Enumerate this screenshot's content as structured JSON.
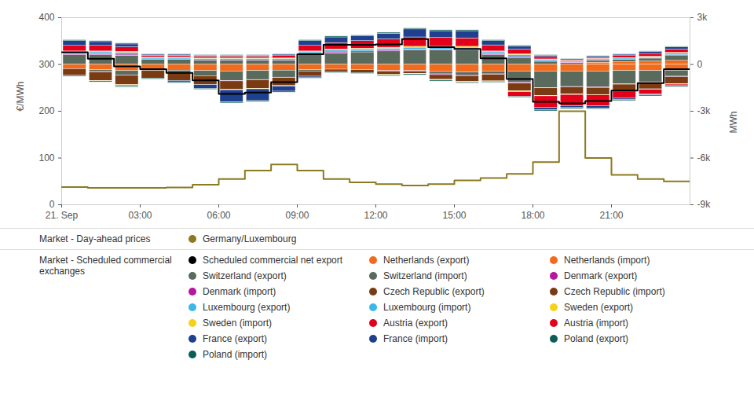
{
  "chart_data": {
    "type": "bar",
    "stacked": true,
    "grid": false,
    "legend": "bottom",
    "ylabel": "€/MWh",
    "y2label": "MWh",
    "x": [
      0,
      1,
      2,
      3,
      4,
      5,
      6,
      7,
      8,
      9,
      10,
      11,
      12,
      13,
      14,
      15,
      16,
      17,
      18,
      19,
      20,
      21,
      22,
      23
    ],
    "xlim": [
      0,
      24
    ],
    "xticks": [
      {
        "value": 0,
        "label": "21. Sep"
      },
      {
        "value": 3,
        "label": "03:00"
      },
      {
        "value": 6,
        "label": "06:00"
      },
      {
        "value": 9,
        "label": "09:00"
      },
      {
        "value": 12,
        "label": "12:00"
      },
      {
        "value": 15,
        "label": "15:00"
      },
      {
        "value": 18,
        "label": "18:00"
      },
      {
        "value": 21,
        "label": "21:00"
      }
    ],
    "ylim": [
      0,
      400
    ],
    "yticks": [
      0,
      100,
      200,
      300,
      400
    ],
    "y2lim": [
      -9000,
      3000
    ],
    "y2ticks": [
      {
        "value": -9000,
        "label": "-9k"
      },
      {
        "value": -6000,
        "label": "-6k"
      },
      {
        "value": -3000,
        "label": "-3k"
      },
      0,
      {
        "value": 3000,
        "label": "3k"
      }
    ],
    "series": [
      {
        "name": "Germany/Luxembourg",
        "group": "Market - Day-ahead prices",
        "type": "line",
        "line_style": "step",
        "color": "#8c7a1e",
        "values": [
          38,
          36,
          36,
          36,
          37,
          43,
          55,
          73,
          86,
          73,
          55,
          48,
          44,
          41,
          44,
          52,
          57,
          66,
          91,
          200,
          100,
          64,
          55,
          50
        ]
      },
      {
        "name": "Scheduled commercial net export",
        "group": "Market - Scheduled commercial exchanges",
        "type": "line",
        "line_style": "step",
        "axis": "y2",
        "color": "#000000",
        "values": [
          780,
          360,
          -120,
          -300,
          -540,
          -1020,
          -1890,
          -1800,
          -1140,
          660,
          1260,
          1260,
          1290,
          1620,
          1110,
          990,
          390,
          -930,
          -2400,
          -2490,
          -2340,
          -1680,
          -1200,
          -300
        ]
      },
      {
        "name": "Netherlands (export)",
        "group": "Market - Scheduled commercial exchanges",
        "type": "bar",
        "axis": "y2",
        "color": "#f26b1d",
        "values": [
          0,
          0,
          0,
          0,
          0,
          0,
          0,
          0,
          0,
          0,
          0,
          0,
          0,
          0,
          0,
          0,
          0,
          0,
          0,
          0,
          120,
          150,
          200,
          240
        ]
      },
      {
        "name": "Netherlands (import)",
        "group": "Market - Scheduled commercial exchanges",
        "type": "bar",
        "axis": "y2",
        "color": "#f26b1d",
        "values": [
          -300,
          -360,
          -420,
          -360,
          -390,
          -420,
          -450,
          -420,
          -390,
          -360,
          -330,
          -360,
          -420,
          -420,
          -480,
          -510,
          -450,
          -450,
          -450,
          -450,
          -450,
          -420,
          -420,
          -390
        ]
      },
      {
        "name": "Switzerland (export)",
        "group": "Market - Scheduled commercial exchanges",
        "type": "bar",
        "axis": "y2",
        "color": "#5a6b5e",
        "values": [
          600,
          600,
          570,
          300,
          300,
          240,
          240,
          240,
          240,
          600,
          720,
          780,
          840,
          900,
          900,
          900,
          600,
          420,
          180,
          90,
          120,
          150,
          180,
          300
        ]
      },
      {
        "name": "Switzerland (import)",
        "group": "Market - Scheduled commercial exchanges",
        "type": "bar",
        "axis": "y2",
        "color": "#5a6b5e",
        "values": [
          0,
          -120,
          -270,
          -60,
          -150,
          -330,
          -600,
          -570,
          -450,
          -90,
          0,
          0,
          0,
          0,
          -150,
          -180,
          -180,
          -720,
          -1050,
          -990,
          -1020,
          -840,
          -720,
          -390
        ]
      },
      {
        "name": "Denmark (export)",
        "group": "Market - Scheduled commercial exchanges",
        "type": "bar",
        "axis": "y2",
        "color": "#b5179e",
        "values": [
          60,
          60,
          60,
          30,
          30,
          30,
          30,
          30,
          30,
          60,
          60,
          60,
          60,
          60,
          60,
          60,
          60,
          60,
          30,
          30,
          30,
          30,
          30,
          60
        ]
      },
      {
        "name": "Denmark (import)",
        "group": "Market - Scheduled commercial exchanges",
        "type": "bar",
        "axis": "y2",
        "color": "#b5179e",
        "values": [
          0,
          -30,
          -30,
          0,
          0,
          0,
          -30,
          -30,
          -30,
          0,
          0,
          0,
          -30,
          -30,
          -50,
          -50,
          -30,
          -60,
          -30,
          -30,
          -30,
          -30,
          -30,
          -30
        ]
      },
      {
        "name": "Czech Republic (export)",
        "group": "Market - Scheduled commercial exchanges",
        "type": "bar",
        "axis": "y2",
        "color": "#7a3b12",
        "values": [
          0,
          0,
          0,
          0,
          0,
          0,
          0,
          0,
          0,
          0,
          0,
          0,
          0,
          0,
          0,
          0,
          0,
          0,
          0,
          0,
          0,
          0,
          0,
          0
        ]
      },
      {
        "name": "Czech Republic (import)",
        "group": "Market - Scheduled commercial exchanges",
        "type": "bar",
        "axis": "y2",
        "color": "#7a3b12",
        "values": [
          -420,
          -540,
          -600,
          -480,
          -510,
          -570,
          -540,
          -540,
          -510,
          -330,
          -150,
          -180,
          -210,
          -150,
          -300,
          -360,
          -420,
          -480,
          -480,
          -450,
          -450,
          -420,
          -420,
          -450
        ]
      },
      {
        "name": "Luxembourg (export)",
        "group": "Market - Scheduled commercial exchanges",
        "type": "bar",
        "axis": "y2",
        "color": "#3bb7e8",
        "values": [
          120,
          120,
          120,
          90,
          90,
          90,
          90,
          90,
          90,
          120,
          120,
          120,
          120,
          120,
          120,
          120,
          120,
          120,
          90,
          60,
          60,
          60,
          60,
          90
        ]
      },
      {
        "name": "Luxembourg (import)",
        "group": "Market - Scheduled commercial exchanges",
        "type": "bar",
        "axis": "y2",
        "color": "#3bb7e8",
        "values": [
          0,
          0,
          0,
          0,
          0,
          0,
          0,
          0,
          0,
          0,
          0,
          0,
          0,
          0,
          0,
          0,
          0,
          0,
          0,
          0,
          0,
          0,
          0,
          0
        ]
      },
      {
        "name": "Sweden (export)",
        "group": "Market - Scheduled commercial exchanges",
        "type": "bar",
        "axis": "y2",
        "color": "#f7d117",
        "values": [
          60,
          60,
          60,
          30,
          30,
          30,
          30,
          30,
          30,
          60,
          60,
          60,
          60,
          60,
          60,
          60,
          60,
          60,
          30,
          30,
          30,
          30,
          30,
          60
        ]
      },
      {
        "name": "Sweden (import)",
        "group": "Market - Scheduled commercial exchanges",
        "type": "bar",
        "axis": "y2",
        "color": "#f7d117",
        "values": [
          0,
          -30,
          -30,
          0,
          0,
          0,
          -30,
          -30,
          -30,
          0,
          0,
          0,
          -30,
          -30,
          -50,
          -50,
          -30,
          -60,
          -30,
          -30,
          -30,
          -30,
          -30,
          -30
        ]
      },
      {
        "name": "Austria (export)",
        "group": "Market - Scheduled commercial exchanges",
        "type": "bar",
        "axis": "y2",
        "color": "#e2001a",
        "values": [
          360,
          360,
          300,
          120,
          120,
          120,
          120,
          120,
          150,
          360,
          420,
          480,
          540,
          600,
          570,
          540,
          390,
          300,
          150,
          60,
          60,
          120,
          180,
          210
        ]
      },
      {
        "name": "Austria (import)",
        "group": "Market - Scheduled commercial exchanges",
        "type": "bar",
        "axis": "y2",
        "color": "#e2001a",
        "values": [
          0,
          0,
          0,
          0,
          0,
          0,
          0,
          0,
          0,
          0,
          0,
          0,
          0,
          0,
          0,
          0,
          0,
          -300,
          -750,
          -720,
          -690,
          -450,
          -300,
          -90
        ]
      },
      {
        "name": "France (export)",
        "group": "Market - Scheduled commercial exchanges",
        "type": "bar",
        "axis": "y2",
        "color": "#1f3f8f",
        "values": [
          300,
          240,
          180,
          60,
          60,
          60,
          60,
          60,
          90,
          300,
          360,
          300,
          360,
          510,
          430,
          460,
          270,
          180,
          90,
          60,
          90,
          90,
          130,
          150
        ]
      },
      {
        "name": "France (import)",
        "group": "Market - Scheduled commercial exchanges",
        "type": "bar",
        "axis": "y2",
        "color": "#1f3f8f",
        "values": [
          0,
          0,
          -60,
          0,
          -90,
          -240,
          -780,
          -750,
          -330,
          -60,
          0,
          0,
          0,
          0,
          0,
          0,
          0,
          0,
          -150,
          -120,
          -150,
          -90,
          -60,
          0
        ]
      },
      {
        "name": "Poland (export)",
        "group": "Market - Scheduled commercial exchanges",
        "type": "bar",
        "axis": "y2",
        "color": "#0a5e57",
        "values": [
          60,
          60,
          60,
          30,
          30,
          30,
          30,
          30,
          30,
          60,
          60,
          60,
          60,
          60,
          60,
          60,
          60,
          60,
          30,
          30,
          30,
          30,
          30,
          30
        ]
      },
      {
        "name": "Poland (import)",
        "group": "Market - Scheduled commercial exchanges",
        "type": "bar",
        "axis": "y2",
        "color": "#0a5e57",
        "values": [
          -60,
          -60,
          -60,
          -60,
          -60,
          -60,
          -60,
          -60,
          -60,
          -60,
          -60,
          -60,
          -60,
          -60,
          -60,
          -60,
          -60,
          -60,
          -60,
          -60,
          -60,
          -60,
          -60,
          -60
        ]
      }
    ]
  }
}
